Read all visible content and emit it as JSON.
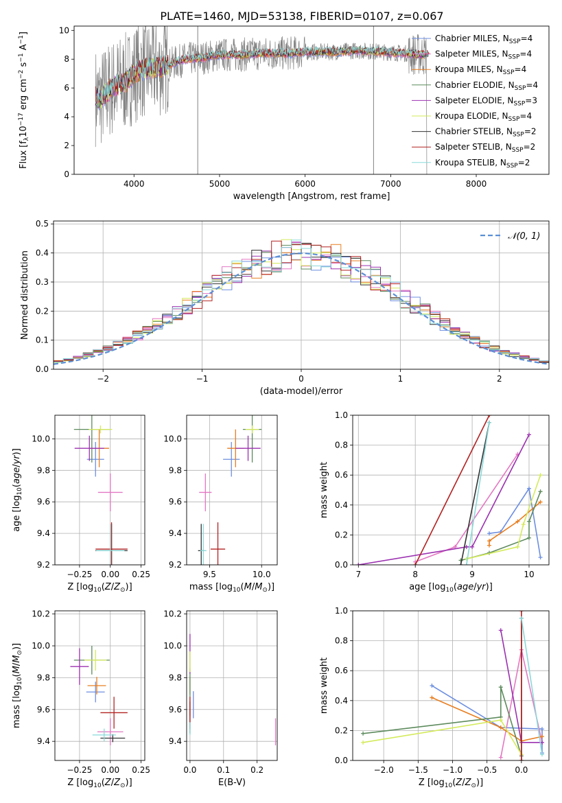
{
  "figure": {
    "title": "PLATE=1460, MJD=53138, FIBERID=0107, z=0.067"
  },
  "colors": {
    "chabrier_miles": "#6c8ee0",
    "salpeter_miles": "#e377c2",
    "kroupa_miles": "#e87d1e",
    "chabrier_elodie": "#5c8a5c",
    "salpeter_elodie": "#9b30b0",
    "kroupa_elodie": "#d4ea5a",
    "chabrier_stelib": "#333333",
    "salpeter_stelib": "#b22020",
    "kroupa_stelib": "#8ad8d8",
    "data": "#808080",
    "normal": "#5b8fd6"
  },
  "chart_data": [
    {
      "id": "spectrum",
      "type": "line",
      "xlabel": "wavelength [Angstrom, rest frame]",
      "ylabel": "Flux [f",
      "xlim": [
        3300,
        8850
      ],
      "ylim": [
        0,
        10.3
      ],
      "xticks": [
        4000,
        5000,
        6000,
        7000,
        8000
      ],
      "yticks": [
        0,
        2,
        4,
        6,
        8,
        10
      ],
      "legend_location": "right",
      "series_names": [
        "Chabrier MILES, N",
        "Salpeter MILES, N",
        "Kroupa MILES, N",
        "Chabrier ELODIE, N",
        "Salpeter ELODIE, N",
        "Kroupa ELODIE, N",
        "Chabrier STELIB, N",
        "Salpeter STELIB, N",
        "Kroupa STELIB, N"
      ],
      "series_nssp": [
        "=4",
        "=4",
        "=4",
        "=4",
        "=3",
        "=4",
        "=2",
        "=2",
        "=2"
      ],
      "model_trend": [
        [
          3550,
          5.4
        ],
        [
          3600,
          5.2
        ],
        [
          3700,
          5.8
        ],
        [
          3800,
          6.2
        ],
        [
          3900,
          6.4
        ],
        [
          4000,
          7.0
        ],
        [
          4100,
          7.3
        ],
        [
          4200,
          7.4
        ],
        [
          4300,
          7.4
        ],
        [
          4400,
          7.6
        ],
        [
          4600,
          8.0
        ],
        [
          4800,
          8.1
        ],
        [
          5000,
          8.3
        ],
        [
          5200,
          8.3
        ],
        [
          5500,
          8.4
        ],
        [
          5800,
          8.4
        ],
        [
          6000,
          8.5
        ],
        [
          6300,
          8.5
        ],
        [
          6600,
          8.6
        ],
        [
          6900,
          8.5
        ],
        [
          7200,
          8.4
        ],
        [
          7400,
          8.3
        ]
      ]
    },
    {
      "id": "residuals",
      "type": "line",
      "xlabel": "(data-model)/error",
      "ylabel": "Normed distribution",
      "xlim": [
        -2.5,
        2.5
      ],
      "ylim": [
        0,
        0.51
      ],
      "xticks": [
        -2,
        -1,
        0,
        1,
        2
      ],
      "yticks": [
        0.0,
        0.1,
        0.2,
        0.3,
        0.4,
        0.5
      ],
      "grid": true,
      "legend": "N(0,1)",
      "bin_width": 0.1
    },
    {
      "id": "age-vs-z",
      "type": "scatter",
      "xlabel": "Z [log",
      "ylabel": "age  [log",
      "xlim": [
        -0.45,
        0.28
      ],
      "ylim": [
        9.2,
        10.15
      ],
      "xticks": [
        -0.25,
        0.0,
        0.25
      ],
      "yticks": [
        9.2,
        9.4,
        9.6,
        9.8,
        10.0
      ],
      "grid": true,
      "points": [
        {
          "c": "chabrier_miles",
          "x": -0.12,
          "y": 9.87,
          "xe": 0.14,
          "ye": 0.22
        },
        {
          "c": "salpeter_miles",
          "x": 0.0,
          "y": 9.66,
          "xe": 0.2,
          "ye": 0.24
        },
        {
          "c": "kroupa_miles",
          "x": -0.09,
          "y": 9.94,
          "xe": 0.16,
          "ye": 0.24
        },
        {
          "c": "chabrier_elodie",
          "x": -0.15,
          "y": 10.06,
          "xe": 0.29,
          "ye": 0.42
        },
        {
          "c": "salpeter_elodie",
          "x": -0.17,
          "y": 9.94,
          "xe": 0.24,
          "ye": 0.16
        },
        {
          "c": "kroupa_elodie",
          "x": -0.08,
          "y": 10.06,
          "xe": 0.19,
          "ye": 0.05
        },
        {
          "c": "chabrier_stelib",
          "x": 0.01,
          "y": 9.29,
          "xe": 0.26,
          "ye": 0.34
        },
        {
          "c": "salpeter_stelib",
          "x": 0.01,
          "y": 9.3,
          "xe": 0.26,
          "ye": 0.34
        },
        {
          "c": "kroupa_stelib",
          "x": 0.0,
          "y": 9.29,
          "xe": 0.23,
          "ye": 0.34
        }
      ]
    },
    {
      "id": "age-vs-mass",
      "type": "scatter",
      "xlabel": "mass [log",
      "ylabel": "",
      "xlim": [
        9.28,
        10.15
      ],
      "ylim": [
        9.2,
        10.15
      ],
      "xticks": [
        9.5,
        10.0
      ],
      "yticks": [
        9.2,
        9.4,
        9.6,
        9.8,
        10.0
      ],
      "grid": true,
      "points": [
        {
          "c": "chabrier_miles",
          "x": 9.71,
          "y": 9.87,
          "xe": 0.16,
          "ye": 0.22
        },
        {
          "c": "salpeter_miles",
          "x": 9.46,
          "y": 9.66,
          "xe": 0.12,
          "ye": 0.24
        },
        {
          "c": "kroupa_miles",
          "x": 9.75,
          "y": 9.94,
          "xe": 0.16,
          "ye": 0.24
        },
        {
          "c": "chabrier_elodie",
          "x": 9.91,
          "y": 10.06,
          "xe": 0.18,
          "ye": 0.42
        },
        {
          "c": "salpeter_elodie",
          "x": 9.87,
          "y": 9.94,
          "xe": 0.24,
          "ye": 0.16
        },
        {
          "c": "kroupa_elodie",
          "x": 9.91,
          "y": 10.06,
          "xe": 0.13,
          "ye": 0.05
        },
        {
          "c": "chabrier_stelib",
          "x": 9.42,
          "y": 9.29,
          "xe": 0.06,
          "ye": 0.34
        },
        {
          "c": "salpeter_stelib",
          "x": 9.58,
          "y": 9.3,
          "xe": 0.14,
          "ye": 0.34
        },
        {
          "c": "kroupa_stelib",
          "x": 9.44,
          "y": 9.29,
          "xe": 0.06,
          "ye": 0.34
        }
      ]
    },
    {
      "id": "weight-vs-age",
      "type": "line",
      "xlabel": "age  [log",
      "ylabel": "mass weight",
      "xlim": [
        6.9,
        10.35
      ],
      "ylim": [
        0,
        1.0
      ],
      "xticks": [
        7,
        8,
        9,
        10
      ],
      "yticks": [
        0.0,
        0.2,
        0.4,
        0.6,
        0.8,
        1.0
      ],
      "grid": true,
      "series": [
        {
          "c": "chabrier_miles",
          "points": [
            [
              9.3,
              0.21
            ],
            [
              9.5,
              0.22
            ],
            [
              10.0,
              0.51
            ],
            [
              10.2,
              0.05
            ]
          ]
        },
        {
          "c": "salpeter_miles",
          "points": [
            [
              8.0,
              0.02
            ],
            [
              8.7,
              0.12
            ],
            [
              9.8,
              0.74
            ],
            [
              8.7,
              0.12
            ]
          ]
        },
        {
          "c": "kroupa_miles",
          "points": [
            [
              9.3,
              0.13
            ],
            [
              9.3,
              0.16
            ],
            [
              9.8,
              0.29
            ],
            [
              10.2,
              0.42
            ]
          ]
        },
        {
          "c": "chabrier_elodie",
          "points": [
            [
              8.8,
              0.03
            ],
            [
              9.3,
              0.08
            ],
            [
              10.0,
              0.18
            ],
            [
              10.0,
              0.29
            ],
            [
              10.2,
              0.49
            ]
          ]
        },
        {
          "c": "salpeter_elodie",
          "points": [
            [
              7.0,
              0.0
            ],
            [
              8.9,
              0.12
            ],
            [
              9.0,
              0.12
            ],
            [
              10.0,
              0.87
            ]
          ]
        },
        {
          "c": "kroupa_elodie",
          "points": [
            [
              8.9,
              0.04
            ],
            [
              9.8,
              0.12
            ],
            [
              9.9,
              0.27
            ],
            [
              10.2,
              0.6
            ]
          ]
        },
        {
          "c": "chabrier_stelib",
          "points": [
            [
              8.8,
              0.0
            ],
            [
              9.3,
              0.95
            ]
          ]
        },
        {
          "c": "salpeter_stelib",
          "points": [
            [
              8.0,
              0.0
            ],
            [
              9.3,
              1.0
            ]
          ]
        },
        {
          "c": "kroupa_stelib",
          "points": [
            [
              8.9,
              0.0
            ],
            [
              9.3,
              0.95
            ]
          ]
        }
      ]
    },
    {
      "id": "mass-vs-z",
      "type": "scatter",
      "xlabel": "Z [log",
      "ylabel": "mass [log",
      "xlim": [
        -0.45,
        0.28
      ],
      "ylim": [
        9.28,
        10.22
      ],
      "xticks": [
        -0.25,
        0.0,
        0.25
      ],
      "yticks": [
        9.4,
        9.6,
        9.8,
        10.0,
        10.2
      ],
      "grid": true,
      "points": [
        {
          "c": "chabrier_miles",
          "x": -0.12,
          "y": 9.71,
          "xe": 0.15,
          "ye": 0.13
        },
        {
          "c": "salpeter_miles",
          "x": 0.0,
          "y": 9.46,
          "xe": 0.21,
          "ye": 0.17
        },
        {
          "c": "kroupa_miles",
          "x": -0.11,
          "y": 9.75,
          "xe": 0.15,
          "ye": 0.11
        },
        {
          "c": "chabrier_elodie",
          "x": -0.15,
          "y": 9.91,
          "xe": 0.29,
          "ye": 0.18
        },
        {
          "c": "salpeter_elodie",
          "x": -0.25,
          "y": 9.87,
          "xe": 0.15,
          "ye": 0.23
        },
        {
          "c": "kroupa_elodie",
          "x": -0.12,
          "y": 9.91,
          "xe": 0.18,
          "ye": 0.13
        },
        {
          "c": "chabrier_stelib",
          "x": 0.02,
          "y": 9.42,
          "xe": 0.2,
          "ye": 0.05
        },
        {
          "c": "salpeter_stelib",
          "x": 0.03,
          "y": 9.58,
          "xe": 0.22,
          "ye": 0.2
        },
        {
          "c": "kroupa_stelib",
          "x": -0.05,
          "y": 9.44,
          "xe": 0.19,
          "ye": 0.08
        }
      ]
    },
    {
      "id": "mass-vs-ebv",
      "type": "scatter",
      "xlabel": "E(B-V)",
      "ylabel": "",
      "xlim": [
        -0.01,
        0.26
      ],
      "ylim": [
        9.28,
        10.22
      ],
      "xticks": [
        0.0,
        0.1,
        0.2
      ],
      "yticks": [
        9.4,
        9.6,
        9.8,
        10.0,
        10.2
      ],
      "grid": true,
      "points": [
        {
          "c": "chabrier_miles",
          "x": 0.01,
          "y": 9.63,
          "xe": 0,
          "ye": 0.17
        },
        {
          "c": "salpeter_miles",
          "x": 0.255,
          "y": 9.46,
          "xe": 0,
          "ye": 0.17
        },
        {
          "c": "kroupa_miles",
          "x": 0.0,
          "y": 9.75,
          "xe": 0,
          "ye": 0.11
        },
        {
          "c": "chabrier_elodie",
          "x": 0.0,
          "y": 9.71,
          "xe": 0,
          "ye": 0.3
        },
        {
          "c": "salpeter_elodie",
          "x": 0.0,
          "y": 9.95,
          "xe": 0,
          "ye": 0.25
        },
        {
          "c": "kroupa_elodie",
          "x": 0.0,
          "y": 9.9,
          "xe": 0,
          "ye": 0.13
        },
        {
          "c": "chabrier_stelib",
          "x": 0.0,
          "y": 9.55,
          "xe": 0,
          "ye": 0.2
        },
        {
          "c": "salpeter_stelib",
          "x": 0.0,
          "y": 9.58,
          "xe": 0,
          "ye": 0.2
        },
        {
          "c": "kroupa_stelib",
          "x": 0.0,
          "y": 9.48,
          "xe": 0,
          "ye": 0.08
        }
      ]
    },
    {
      "id": "weight-vs-z",
      "type": "line",
      "xlabel": "Z [log",
      "ylabel": "mass weight",
      "xlim": [
        -2.45,
        0.4
      ],
      "ylim": [
        0,
        1.0
      ],
      "xticks": [
        -2.0,
        -1.5,
        -1.0,
        -0.5,
        0.0
      ],
      "yticks": [
        0.0,
        0.2,
        0.4,
        0.6,
        0.8,
        1.0
      ],
      "grid": true,
      "series": [
        {
          "c": "chabrier_miles",
          "points": [
            [
              -1.3,
              0.5
            ],
            [
              -0.3,
              0.22
            ],
            [
              0.3,
              0.21
            ],
            [
              0.3,
              0.05
            ]
          ]
        },
        {
          "c": "salpeter_miles",
          "points": [
            [
              -0.3,
              0.02
            ],
            [
              0.0,
              0.74
            ],
            [
              0.3,
              0.12
            ]
          ]
        },
        {
          "c": "kroupa_miles",
          "points": [
            [
              -1.3,
              0.42
            ],
            [
              -0.3,
              0.22
            ],
            [
              0.0,
              0.13
            ],
            [
              0.3,
              0.16
            ]
          ]
        },
        {
          "c": "chabrier_elodie",
          "points": [
            [
              -2.3,
              0.18
            ],
            [
              -0.3,
              0.29
            ],
            [
              -0.3,
              0.49
            ],
            [
              0.0,
              0.03
            ]
          ]
        },
        {
          "c": "salpeter_elodie",
          "points": [
            [
              -0.3,
              0.87
            ],
            [
              0.0,
              0.12
            ],
            [
              0.3,
              0.12
            ]
          ]
        },
        {
          "c": "kroupa_elodie",
          "points": [
            [
              -2.3,
              0.12
            ],
            [
              -0.3,
              0.27
            ],
            [
              0.0,
              0.04
            ]
          ]
        },
        {
          "c": "chabrier_stelib",
          "points": [
            [
              0.0,
              0.0
            ],
            [
              0.0,
              0.95
            ]
          ]
        },
        {
          "c": "salpeter_stelib",
          "points": [
            [
              0.0,
              0.0
            ],
            [
              0.0,
              1.0
            ]
          ]
        },
        {
          "c": "kroupa_stelib",
          "points": [
            [
              0.0,
              0.95
            ],
            [
              0.3,
              0.04
            ]
          ]
        }
      ]
    }
  ]
}
